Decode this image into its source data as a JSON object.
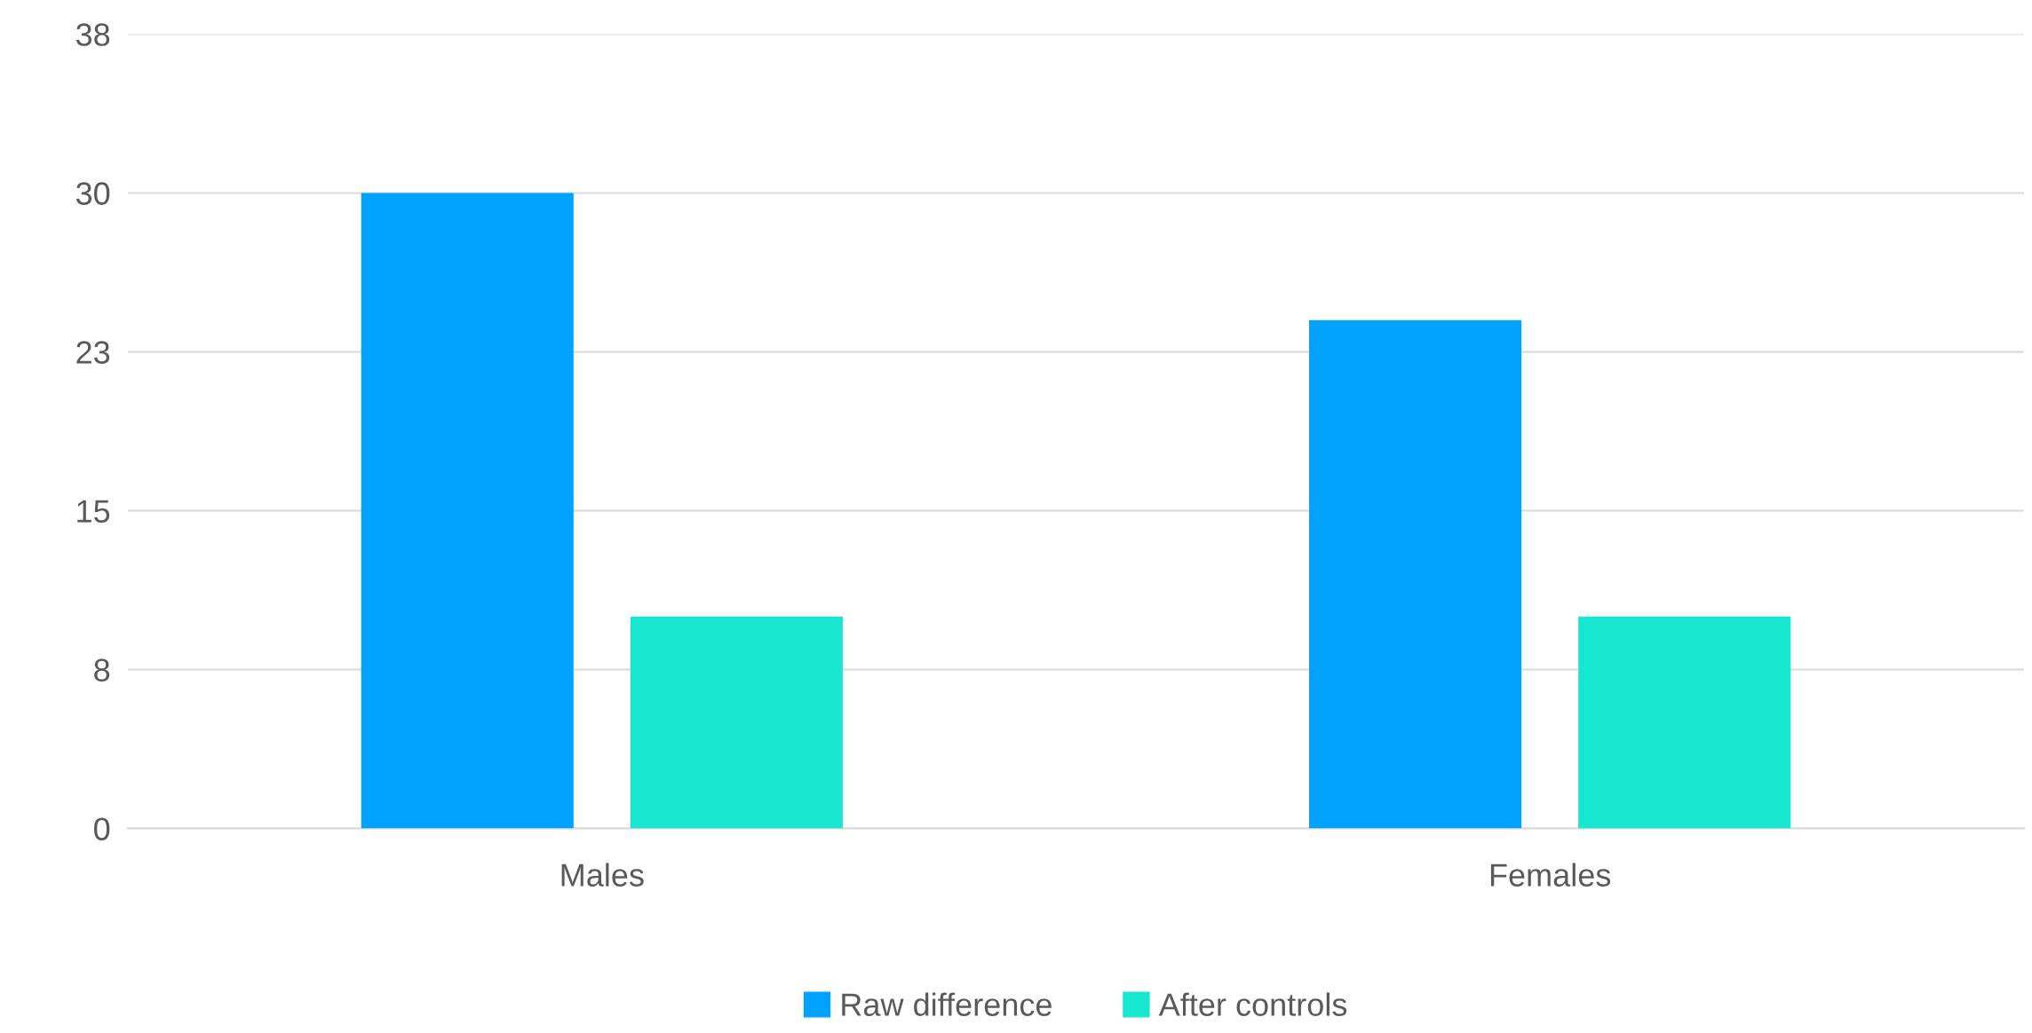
{
  "chart_data": {
    "type": "bar",
    "categories": [
      "Males",
      "Females"
    ],
    "series": [
      {
        "name": "Raw difference",
        "color": "#00a2ff",
        "values": [
          30,
          24
        ]
      },
      {
        "name": "After controls",
        "color": "#17e6d0",
        "values": [
          10,
          10
        ]
      }
    ],
    "ylim": [
      0,
      37.5
    ],
    "yticks": [
      0,
      {
        "value": 7.5,
        "label": "8"
      },
      15,
      {
        "value": 22.5,
        "label": "23"
      },
      30,
      {
        "value": 37.5,
        "label": "38"
      }
    ],
    "grid": "y",
    "legend": "bottom"
  }
}
